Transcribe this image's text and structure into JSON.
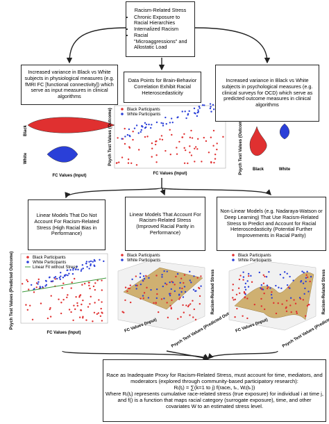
{
  "top_box": {
    "title": "Racism-Related Stress",
    "items": [
      "Chronic Exposure to Racial Hierarchies",
      "Internalized Racism",
      "Racial \"Microaggressions\" and Allostatic Load"
    ]
  },
  "left_box": {
    "text": "Increased variance in Black vs White subjects in physiological measures (e.g. fMRI FC [functional connectivity]) which serve as input measures in clinical algorithms"
  },
  "center_box": {
    "text": "Data Points for Brain-Behavior Correlation Exhibit Racial Heteroscedasticity"
  },
  "right_box": {
    "text": "Increased variance in Black vs White subjects in psychological measures (e.g. clinical surveys for OCD) which serve as predicted outcome measures in clinical algorithms"
  },
  "left_violin": {
    "group_labels": [
      "Black",
      "White"
    ],
    "x_label": "FC Values (Input)"
  },
  "center_scatter": {
    "legend": [
      "Black Participants",
      "White Participants"
    ],
    "x_label": "FC Values (Input)",
    "y_label": "Psych Test Values (Outcome)"
  },
  "right_violin": {
    "group_labels": [
      "Black",
      "White"
    ],
    "y_label": "Psych Test Values (Outcome)"
  },
  "model_boxes": [
    "Linear Models That Do Not Account For Racism-Related Stress (High Racial Bias in Performance)",
    "Linear Models That Account For Racism-Related Stress (Improved Racial Parity in Performance)",
    "Non-Linear Models (e.g. Nadaraya-Watson or Deep Learning) That Use Racism-Related Stress to Predict and Account for Racial Heteroscedasticity (Potential Further Improvements in Racial Parity)"
  ],
  "linear_plot": {
    "legend": [
      "Black Participants",
      "White Participants",
      "Linear Fit without Stress"
    ],
    "x_label": "FC Values (Input)",
    "y_label": "Psych Test Values (Predicted Outcome)"
  },
  "plot_3d_linear": {
    "legend": [
      "Black Participants",
      "White Participants"
    ],
    "x_label": "FC Values (Input)",
    "y_label": "Psych Test Values (Predicted Outcome)",
    "z_label": "Racism-Related Stress"
  },
  "plot_3d_nonlinear": {
    "legend": [
      "Black Participants",
      "White Participants"
    ],
    "x_label": "FC Values (Input)",
    "y_label": "Psych Test Values (Predicted Outcome)",
    "z_label": "Racism-Related Stress"
  },
  "bottom_box": {
    "lines": [
      "Race as Inadequate Proxy for Racism-Related Stress, must account for time, mediators, and moderators (explored through community-based participatory research):",
      "Rᵢ(tⱼ) = ∑(k=1 to j) f(raceᵢ, tₖ, Wᵢ(tₖ))",
      "Where Rᵢ(tⱼ) represents cumulative race-related stress (true exposure) for individual i at time j, and f() is a function that maps racial category (surrogate exposure), time, and other covariates W to an estimated stress level."
    ]
  }
}
